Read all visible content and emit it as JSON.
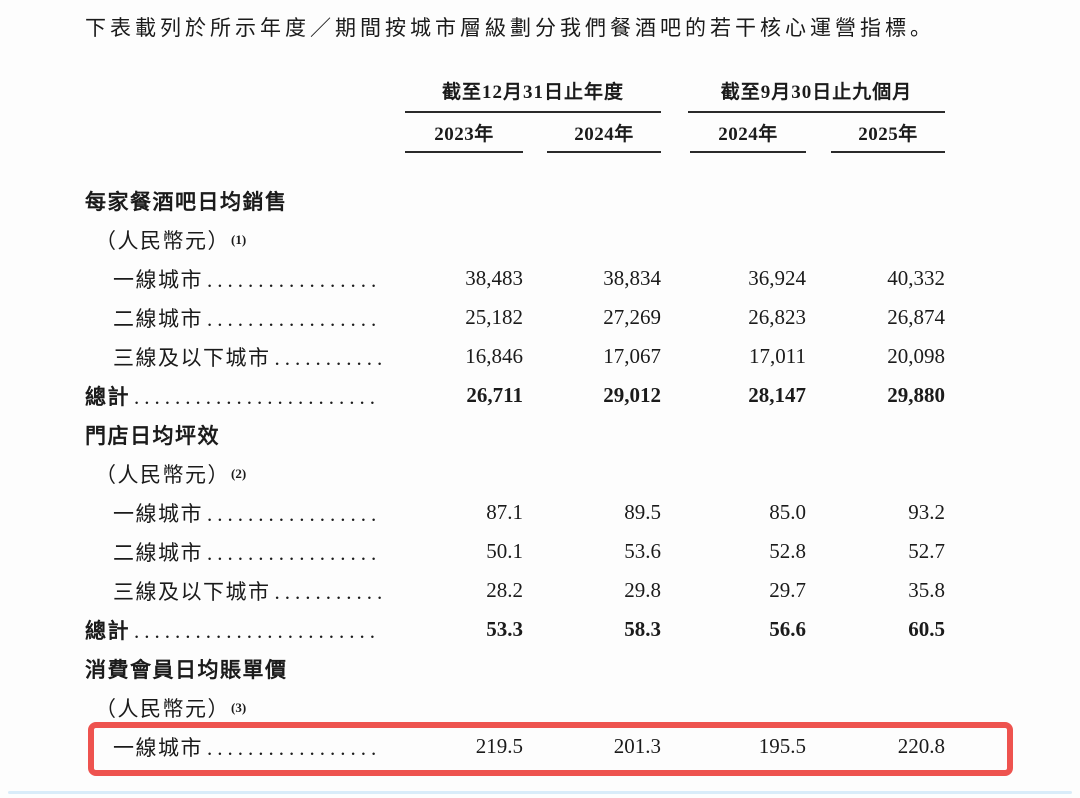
{
  "intro": {
    "text": "下表載列於所示年度／期間按城市層級劃分我們餐酒吧的若干核心運營指標。"
  },
  "table": {
    "column_groups": [
      {
        "label": "截至12月31日止年度",
        "columns": [
          "2023年",
          "2024年"
        ]
      },
      {
        "label": "截至9月30日止九個月",
        "columns": [
          "2024年",
          "2025年"
        ]
      }
    ],
    "sections": [
      {
        "title": "每家餐酒吧日均銷售",
        "subtitle": "（人民幣元）",
        "footnote": "(1)",
        "rows": [
          {
            "label": "一線城市",
            "values": [
              "38,483",
              "38,834",
              "36,924",
              "40,332"
            ],
            "total": false,
            "highlighted": false
          },
          {
            "label": "二線城市",
            "values": [
              "25,182",
              "27,269",
              "26,823",
              "26,874"
            ],
            "total": false,
            "highlighted": false
          },
          {
            "label": "三線及以下城市",
            "values": [
              "16,846",
              "17,067",
              "17,011",
              "20,098"
            ],
            "total": false,
            "highlighted": false
          },
          {
            "label": "總計",
            "values": [
              "26,711",
              "29,012",
              "28,147",
              "29,880"
            ],
            "total": true,
            "highlighted": false
          }
        ]
      },
      {
        "title": "門店日均坪效",
        "subtitle": "（人民幣元）",
        "footnote": "(2)",
        "rows": [
          {
            "label": "一線城市",
            "values": [
              "87.1",
              "89.5",
              "85.0",
              "93.2"
            ],
            "total": false,
            "highlighted": false
          },
          {
            "label": "二線城市",
            "values": [
              "50.1",
              "53.6",
              "52.8",
              "52.7"
            ],
            "total": false,
            "highlighted": false
          },
          {
            "label": "三線及以下城市",
            "values": [
              "28.2",
              "29.8",
              "29.7",
              "35.8"
            ],
            "total": false,
            "highlighted": false
          },
          {
            "label": "總計",
            "values": [
              "53.3",
              "58.3",
              "56.6",
              "60.5"
            ],
            "total": true,
            "highlighted": false
          }
        ]
      },
      {
        "title": "消費會員日均賬單價",
        "subtitle": "（人民幣元）",
        "footnote": "(3)",
        "rows": [
          {
            "label": "一線城市",
            "values": [
              "219.5",
              "201.3",
              "195.5",
              "220.8"
            ],
            "total": false,
            "highlighted": true
          }
        ]
      }
    ]
  },
  "colors": {
    "text": "#1b1b1b",
    "rule": "#2b2b2b",
    "highlight_border": "#ee534f",
    "bottom_rule": "#d9ecf9"
  }
}
